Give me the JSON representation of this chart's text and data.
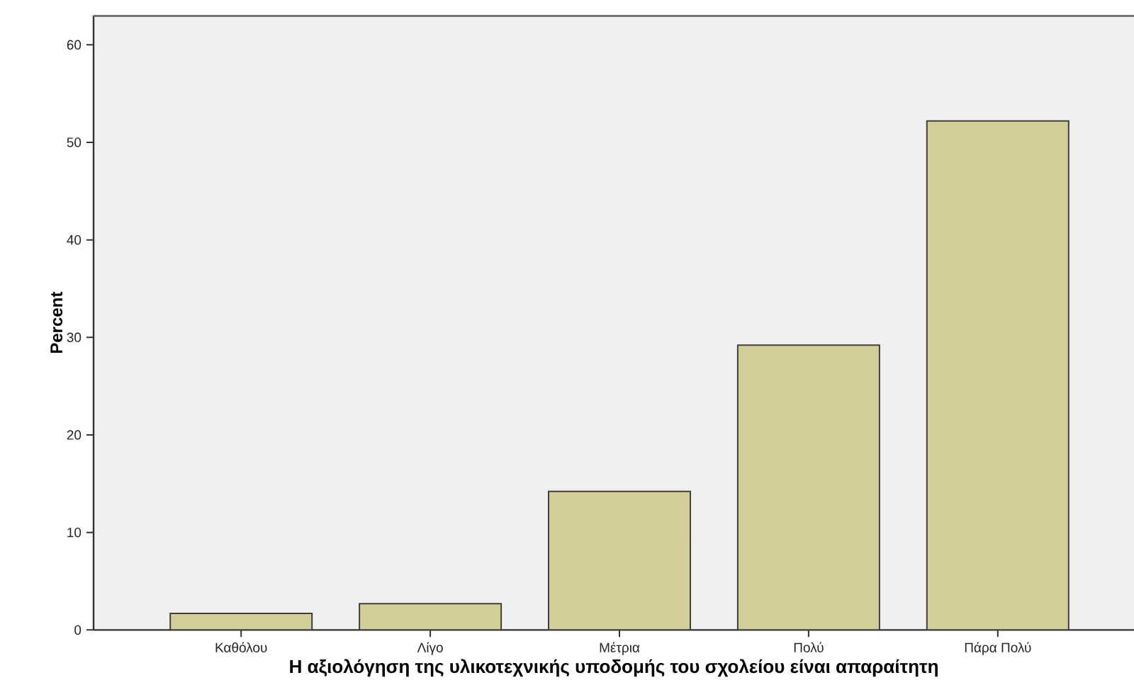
{
  "chart_data": {
    "type": "bar",
    "xlabel": "Η αξιολόγηση της υλικοτεχνικής υποδομής του σχολείου είναι απαραίτητη",
    "ylabel": "Percent",
    "categories": [
      "Καθόλου",
      "Λίγο",
      "Μέτρια",
      "Πολύ",
      "Πάρα Πολύ"
    ],
    "values": [
      1.7,
      2.7,
      14.2,
      29.2,
      52.2
    ],
    "color": "#d3cf98",
    "ylim": [
      0,
      63
    ],
    "yticks": [
      0,
      10,
      20,
      30,
      40,
      50,
      60
    ]
  }
}
